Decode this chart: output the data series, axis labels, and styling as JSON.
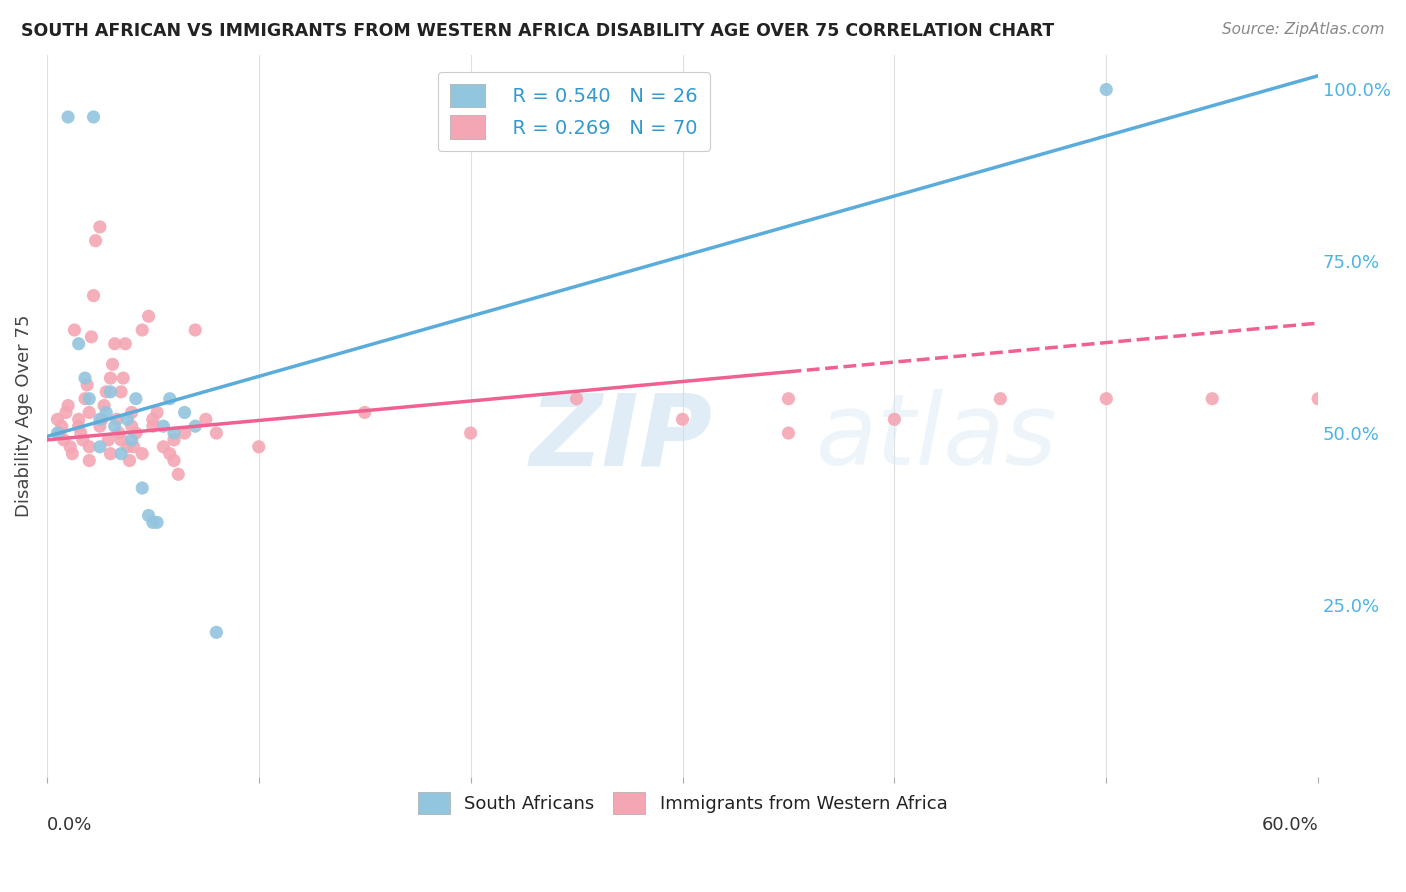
{
  "title": "SOUTH AFRICAN VS IMMIGRANTS FROM WESTERN AFRICA DISABILITY AGE OVER 75 CORRELATION CHART",
  "source": "Source: ZipAtlas.com",
  "ylabel": "Disability Age Over 75",
  "legend_blue_R": "0.540",
  "legend_blue_N": "26",
  "legend_pink_R": "0.269",
  "legend_pink_N": "70",
  "legend_label_blue": "South Africans",
  "legend_label_pink": "Immigrants from Western Africa",
  "blue_color": "#92c5de",
  "pink_color": "#f4a6b4",
  "trendline_blue_color": "#5aacdb",
  "trendline_pink_color": "#f06090",
  "watermark_text": "ZIPatlas",
  "blue_scatter_x": [
    0.5,
    1.0,
    2.2,
    1.5,
    1.8,
    2.0,
    2.5,
    2.5,
    2.8,
    3.0,
    3.2,
    3.5,
    3.8,
    4.0,
    4.2,
    4.5,
    4.8,
    5.0,
    5.2,
    5.5,
    5.8,
    6.0,
    6.5,
    7.0,
    8.0,
    50.0
  ],
  "blue_scatter_y": [
    50.0,
    96.0,
    96.0,
    63.0,
    58.0,
    55.0,
    52.0,
    48.0,
    53.0,
    56.0,
    51.0,
    47.0,
    52.0,
    49.0,
    55.0,
    42.0,
    38.0,
    37.0,
    37.0,
    51.0,
    55.0,
    50.0,
    53.0,
    51.0,
    21.0,
    100.0
  ],
  "pink_scatter_x": [
    0.5,
    0.6,
    0.7,
    0.8,
    0.9,
    1.0,
    1.1,
    1.2,
    1.3,
    1.5,
    1.5,
    1.6,
    1.7,
    1.8,
    1.9,
    2.0,
    2.0,
    2.0,
    2.1,
    2.2,
    2.3,
    2.5,
    2.5,
    2.6,
    2.7,
    2.8,
    2.9,
    3.0,
    3.0,
    3.1,
    3.2,
    3.3,
    3.4,
    3.5,
    3.5,
    3.6,
    3.7,
    3.8,
    3.9,
    4.0,
    4.0,
    4.1,
    4.2,
    4.5,
    4.5,
    4.8,
    5.0,
    5.0,
    5.2,
    5.5,
    5.8,
    6.0,
    6.0,
    6.2,
    6.5,
    7.0,
    7.5,
    8.0,
    10.0,
    15.0,
    20.0,
    25.0,
    30.0,
    35.0,
    40.0,
    45.0,
    50.0,
    55.0,
    60.0,
    35.0
  ],
  "pink_scatter_y": [
    52.0,
    50.0,
    51.0,
    49.0,
    53.0,
    54.0,
    48.0,
    47.0,
    65.0,
    51.0,
    52.0,
    50.0,
    49.0,
    55.0,
    57.0,
    53.0,
    46.0,
    48.0,
    64.0,
    70.0,
    78.0,
    80.0,
    51.0,
    52.0,
    54.0,
    56.0,
    49.0,
    47.0,
    58.0,
    60.0,
    63.0,
    52.0,
    50.0,
    49.0,
    56.0,
    58.0,
    63.0,
    48.0,
    46.0,
    51.0,
    53.0,
    48.0,
    50.0,
    47.0,
    65.0,
    67.0,
    51.0,
    52.0,
    53.0,
    48.0,
    47.0,
    46.0,
    49.0,
    44.0,
    50.0,
    65.0,
    52.0,
    50.0,
    48.0,
    53.0,
    50.0,
    55.0,
    52.0,
    50.0,
    52.0,
    55.0,
    55.0,
    55.0,
    55.0,
    55.0
  ],
  "xlim": [
    0,
    60.0
  ],
  "ylim": [
    0,
    105.0
  ],
  "xtick_positions": [
    0,
    10,
    20,
    30,
    40,
    50,
    60
  ],
  "ytick_right_vals": [
    100.0,
    75.0,
    50.0,
    25.0
  ],
  "background_color": "#ffffff",
  "grid_color": "#e0e0e0",
  "blue_trend_x0": 0.0,
  "blue_trend_y0": 49.5,
  "blue_trend_x1": 60.0,
  "blue_trend_y1": 102.0,
  "pink_trend_x0": 0.0,
  "pink_trend_y0": 49.0,
  "pink_trend_x1": 60.0,
  "pink_trend_y1": 66.0,
  "pink_solid_xmax": 35.0,
  "pink_dashed_xmin": 35.0
}
